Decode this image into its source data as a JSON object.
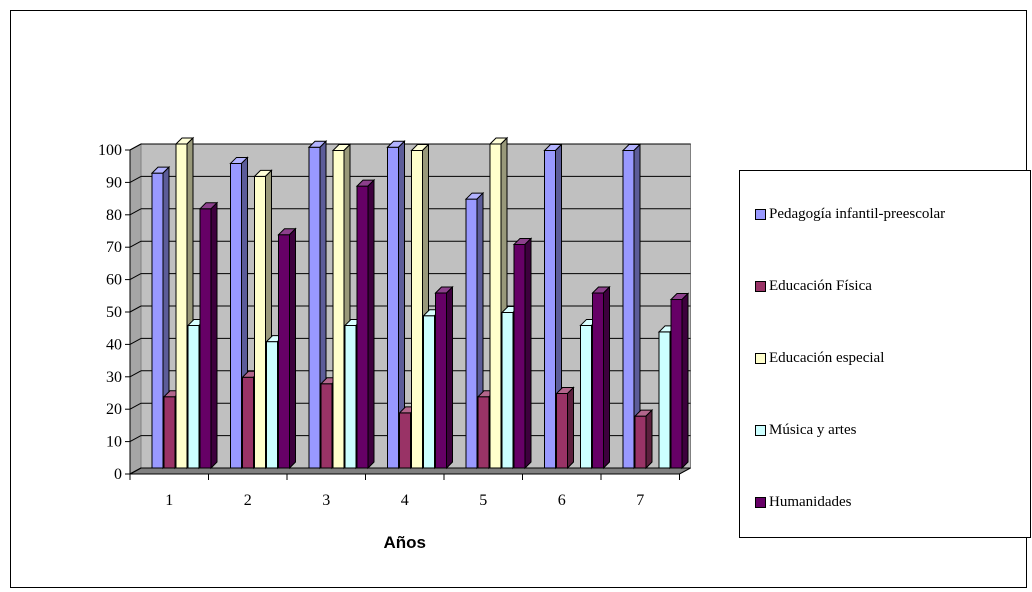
{
  "chart_data": {
    "type": "bar",
    "categories": [
      "1",
      "2",
      "3",
      "4",
      "5",
      "6",
      "7"
    ],
    "xlabel": "Años",
    "ylabel": "",
    "ylim": [
      0,
      100
    ],
    "yticks": [
      "0",
      "10",
      "20",
      "30",
      "40",
      "50",
      "60",
      "70",
      "80",
      "90",
      "100"
    ],
    "grid": true,
    "legend_position": "right",
    "series": [
      {
        "name": "Pedagogía infantil-preescolar",
        "color": "#9999ff",
        "values": [
          91,
          94,
          99,
          99,
          83,
          98,
          98
        ]
      },
      {
        "name": "Educación Física",
        "color": "#993366",
        "values": [
          22,
          28,
          26,
          17,
          22,
          23,
          16
        ]
      },
      {
        "name": "Educación especial",
        "color": "#ffffcc",
        "values": [
          100,
          90,
          98,
          98,
          100,
          null,
          null
        ]
      },
      {
        "name": "Música y artes",
        "color": "#ccffff",
        "values": [
          44,
          39,
          44,
          47,
          48,
          44,
          42
        ]
      },
      {
        "name": "Humanidades",
        "color": "#660066",
        "values": [
          80,
          72,
          87,
          54,
          69,
          54,
          52
        ]
      }
    ]
  }
}
